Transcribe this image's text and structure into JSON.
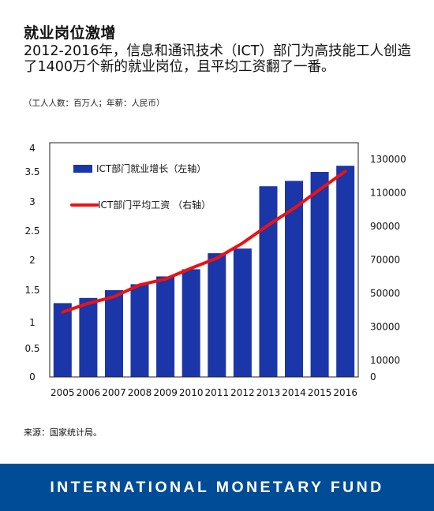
{
  "header": {
    "title": "就业岗位激增",
    "subtitle": "2012-2016年，信息和通讯技术（ICT）部门为高技能工人创造了1400万个新的就业岗位，且平均工资翻了一番。",
    "unit_note": "（工人人数：百万人；年薪：人民币）"
  },
  "source": "来源：国家统计局。",
  "footer": {
    "brand": "INTERNATIONAL MONETARY FUND"
  },
  "colors": {
    "bar": "#1a36a8",
    "line": "#ee1111",
    "footer_bg": "#004c97"
  },
  "chart_data": {
    "type": "bar",
    "categories": [
      "2005",
      "2006",
      "2007",
      "2008",
      "2009",
      "2010",
      "2011",
      "2012",
      "2013",
      "2014",
      "2015",
      "2016"
    ],
    "series": [
      {
        "name": "ICT部门就业增长（左轴）",
        "type": "bar",
        "axis": "left",
        "values": [
          1.3,
          1.38,
          1.5,
          1.6,
          1.73,
          1.85,
          2.12,
          2.2,
          3.26,
          3.35,
          3.5,
          3.63
        ]
      },
      {
        "name": "ICT部门平均工资 （右轴）",
        "type": "line",
        "axis": "right",
        "values": [
          38800,
          44000,
          48000,
          55000,
          58500,
          65000,
          71000,
          80000,
          90800,
          100800,
          112000,
          123000
        ]
      }
    ],
    "left_axis": {
      "ticks": [
        0,
        0.5,
        1,
        1.5,
        2,
        2.5,
        3,
        3.5,
        4
      ],
      "tick_labels": [
        "0",
        "0.5",
        "1",
        "1.5",
        "2",
        "2.5",
        "3",
        "3.5",
        "4"
      ]
    },
    "right_axis": {
      "ylim": [
        0,
        140000
      ],
      "ticks": [
        0,
        10000,
        30000,
        50000,
        70000,
        90000,
        110000,
        130000
      ],
      "tick_labels": [
        "0",
        "10000",
        "30000",
        "50000",
        "70000",
        "90000",
        "110000",
        "130000"
      ]
    },
    "grid": false,
    "legend_position": "top-left"
  }
}
